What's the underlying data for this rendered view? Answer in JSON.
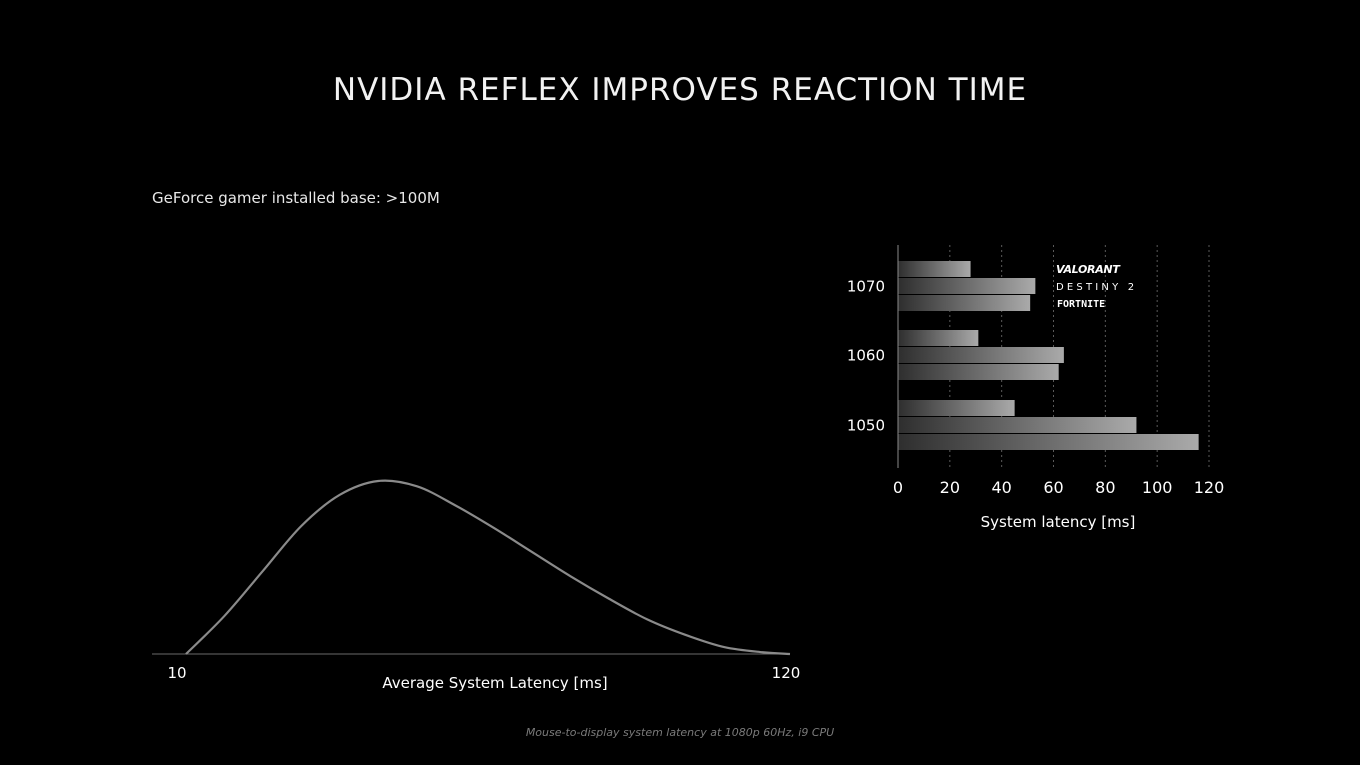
{
  "title": "NVIDIA REFLEX IMPROVES REACTION TIME",
  "subtitle": "GeForce gamer installed base: >100M",
  "footnote": "Mouse-to-display system latency at 1080p 60Hz, i9 CPU",
  "colors": {
    "background": "#000000",
    "curve": "#8a8a8a",
    "bar_light": "#aaaaaa",
    "bar_dark": "#3a3a3a"
  },
  "chart_data": [
    {
      "type": "line",
      "title": "",
      "xlabel": "Average System Latency [ms]",
      "ylabel": "",
      "x_tick_labels": [
        "10",
        "120"
      ],
      "xlim": [
        10,
        120
      ],
      "ylim": [
        0,
        1
      ],
      "grid": false,
      "series": [
        {
          "x": [
            10,
            17,
            24,
            31,
            38,
            45,
            52,
            59,
            66,
            73,
            80,
            87,
            94,
            101,
            108,
            115,
            120
          ],
          "y": [
            0,
            0.22,
            0.48,
            0.74,
            0.92,
            1.0,
            0.97,
            0.86,
            0.73,
            0.59,
            0.45,
            0.32,
            0.2,
            0.11,
            0.04,
            0.01,
            0
          ]
        }
      ]
    },
    {
      "type": "bar",
      "orientation": "horizontal",
      "title": "",
      "xlabel": "System latency [ms]",
      "ylabel": "",
      "xlim": [
        0,
        120
      ],
      "x_ticks": [
        0,
        20,
        40,
        60,
        80,
        100,
        120
      ],
      "grid": true,
      "categories": [
        "1070",
        "1060",
        "1050"
      ],
      "series": [
        {
          "name": "VALORANT",
          "values": [
            28,
            31,
            45
          ]
        },
        {
          "name": "DESTINY 2",
          "values": [
            53,
            64,
            92
          ]
        },
        {
          "name": "FORTNITE",
          "values": [
            51,
            62,
            116
          ]
        }
      ],
      "legend_placement": "top-right"
    }
  ]
}
